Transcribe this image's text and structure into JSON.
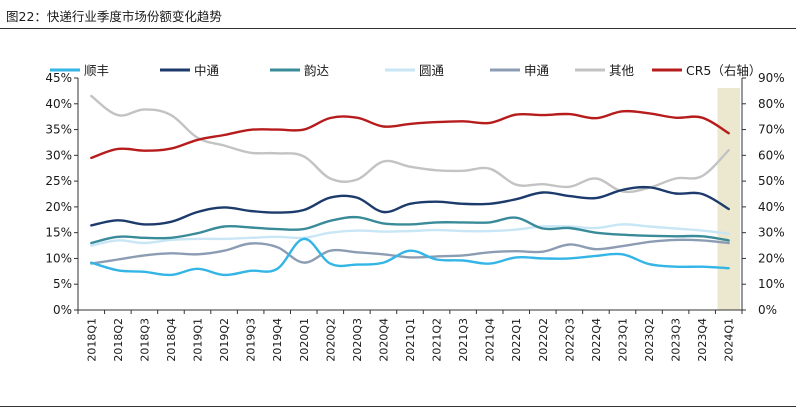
{
  "figure": {
    "title": "图22：快递行业季度市场份额变化趋势"
  },
  "chart_data": {
    "type": "line",
    "categories": [
      "2018Q1",
      "2018Q2",
      "2018Q3",
      "2018Q4",
      "2019Q1",
      "2019Q2",
      "2019Q3",
      "2019Q4",
      "2020Q1",
      "2020Q2",
      "2020Q3",
      "2020Q4",
      "2021Q1",
      "2021Q2",
      "2021Q3",
      "2021Q4",
      "2022Q1",
      "2022Q2",
      "2022Q3",
      "2022Q4",
      "2023Q1",
      "2023Q2",
      "2023Q3",
      "2023Q4",
      "2024Q1"
    ],
    "y_left": {
      "min": 0,
      "max": 45,
      "step": 5,
      "format": "percent"
    },
    "y_right": {
      "min": 0,
      "max": 90,
      "step": 10,
      "format": "percent"
    },
    "highlight_category": "2024Q1",
    "highlight_color": "#ece7cf",
    "legend_position": "top",
    "grid": false,
    "series": [
      {
        "name": "顺丰",
        "color": "#33b5e5",
        "axis": "left",
        "values": [
          9.2,
          7.7,
          7.4,
          6.8,
          8.0,
          6.8,
          7.6,
          8.0,
          13.8,
          9.0,
          8.8,
          9.2,
          11.5,
          9.8,
          9.6,
          9.0,
          10.2,
          10.0,
          10.0,
          10.5,
          10.8,
          8.9,
          8.4,
          8.4,
          8.1
        ]
      },
      {
        "name": "中通",
        "color": "#1c3a6b",
        "axis": "left",
        "values": [
          16.4,
          17.4,
          16.6,
          17.1,
          19.0,
          19.9,
          19.2,
          18.9,
          19.4,
          21.8,
          21.8,
          19.0,
          20.6,
          21.0,
          20.6,
          20.6,
          21.5,
          22.8,
          22.1,
          21.7,
          23.3,
          23.8,
          22.6,
          22.5,
          19.6
        ]
      },
      {
        "name": "韵达",
        "color": "#3a8b9a",
        "axis": "left",
        "values": [
          13.0,
          14.2,
          14.0,
          14.0,
          14.9,
          16.2,
          16.0,
          15.7,
          15.7,
          17.3,
          18.0,
          16.8,
          16.6,
          17.0,
          17.0,
          17.0,
          17.9,
          15.8,
          15.9,
          15.0,
          14.6,
          14.4,
          14.3,
          14.3,
          13.5
        ]
      },
      {
        "name": "圆通",
        "color": "#c8e6f5",
        "axis": "left",
        "values": [
          12.5,
          13.5,
          13.0,
          13.6,
          13.8,
          13.8,
          14.0,
          14.2,
          14.0,
          15.0,
          15.4,
          15.2,
          15.3,
          15.5,
          15.3,
          15.3,
          15.6,
          16.2,
          16.2,
          15.9,
          16.6,
          16.2,
          15.8,
          15.4,
          14.8
        ]
      },
      {
        "name": "申通",
        "color": "#8c9db3",
        "axis": "left",
        "values": [
          9.0,
          9.8,
          10.6,
          11.0,
          10.8,
          11.5,
          12.9,
          12.2,
          9.2,
          11.5,
          11.2,
          10.8,
          10.2,
          10.4,
          10.6,
          11.2,
          11.4,
          11.3,
          12.7,
          11.8,
          12.4,
          13.2,
          13.6,
          13.5,
          13.0
        ]
      },
      {
        "name": "其他",
        "color": "#c3c3c3",
        "axis": "left",
        "values": [
          41.5,
          37.8,
          38.9,
          37.8,
          33.4,
          31.9,
          30.5,
          30.4,
          29.8,
          25.5,
          25.3,
          28.8,
          27.8,
          27.1,
          27.0,
          27.4,
          24.3,
          24.4,
          23.9,
          25.5,
          23.0,
          23.7,
          25.5,
          26.0,
          31.0
        ]
      },
      {
        "name": "CR5（右轴）",
        "color": "#b71c1c",
        "axis": "right",
        "values": [
          59.0,
          62.5,
          61.8,
          62.6,
          66.0,
          67.9,
          69.9,
          70.0,
          70.0,
          74.5,
          74.6,
          71.2,
          72.2,
          72.9,
          73.2,
          72.6,
          75.8,
          75.6,
          76.0,
          74.4,
          77.1,
          76.3,
          74.6,
          74.6,
          68.6
        ]
      }
    ]
  }
}
